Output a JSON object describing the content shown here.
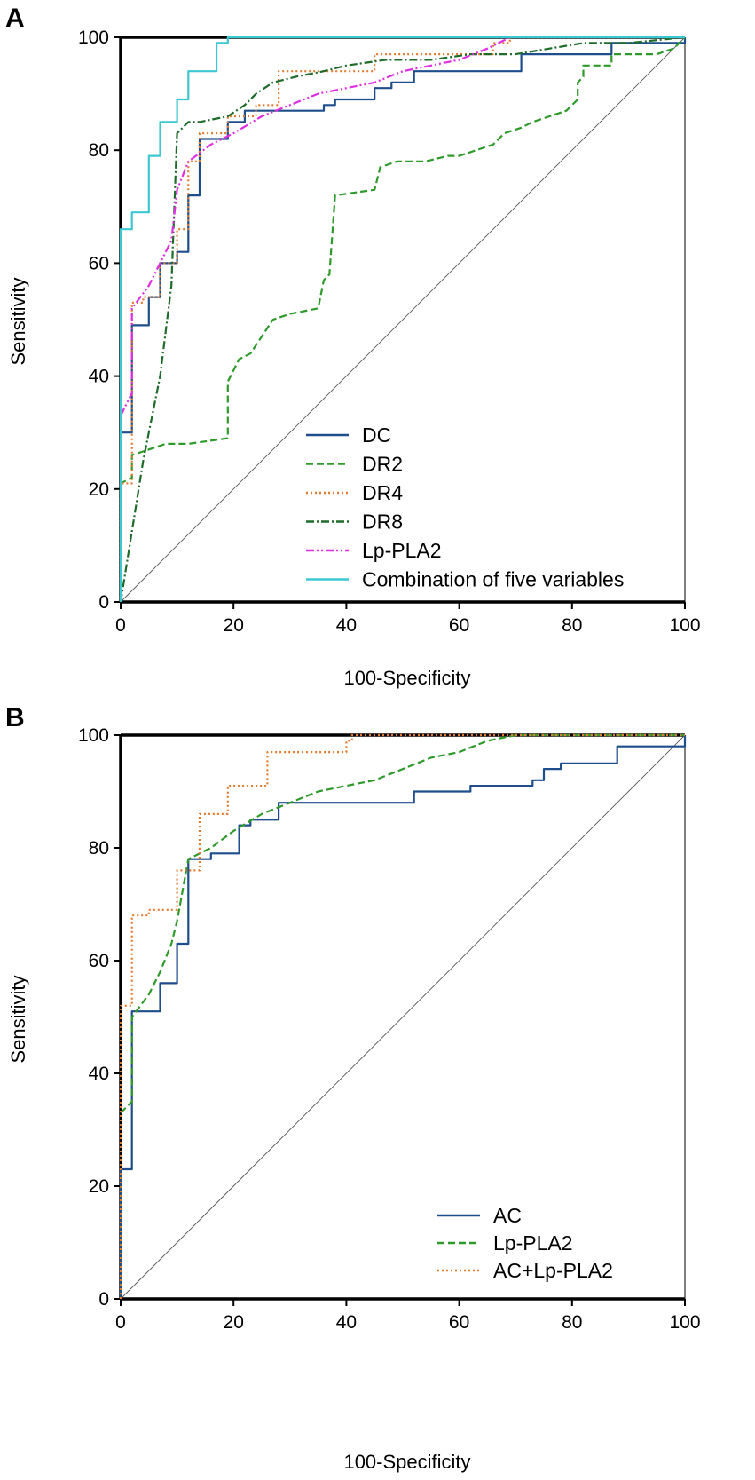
{
  "chart_data": [
    {
      "panel": "A",
      "type": "line",
      "title": "",
      "xlabel": "100-Specificity",
      "ylabel": "Sensitivity",
      "xlim": [
        0,
        100
      ],
      "ylim": [
        0,
        100
      ],
      "xticks": [
        "0",
        "20",
        "40",
        "60",
        "80",
        "100"
      ],
      "yticks": [
        "0",
        "20",
        "40",
        "60",
        "80",
        "100"
      ],
      "legend_position": "bottom-right",
      "reference_line": true,
      "series": [
        {
          "name": "DC",
          "color": "#1f4e8c",
          "dash": "solid",
          "step": true,
          "points": [
            [
              0,
              0
            ],
            [
              0,
              30
            ],
            [
              2,
              30
            ],
            [
              2,
              49
            ],
            [
              5,
              49
            ],
            [
              5,
              54
            ],
            [
              7,
              54
            ],
            [
              7,
              60
            ],
            [
              10,
              60
            ],
            [
              10,
              62
            ],
            [
              12,
              62
            ],
            [
              12,
              72
            ],
            [
              14,
              72
            ],
            [
              14,
              82
            ],
            [
              19,
              82
            ],
            [
              19,
              85
            ],
            [
              22,
              85
            ],
            [
              22,
              87
            ],
            [
              36,
              87
            ],
            [
              36,
              88
            ],
            [
              38,
              88
            ],
            [
              38,
              89
            ],
            [
              45,
              89
            ],
            [
              45,
              91
            ],
            [
              48,
              91
            ],
            [
              48,
              92
            ],
            [
              52,
              92
            ],
            [
              52,
              94
            ],
            [
              71,
              94
            ],
            [
              71,
              97
            ],
            [
              87,
              97
            ],
            [
              87,
              99
            ],
            [
              100,
              99
            ],
            [
              100,
              100
            ]
          ]
        },
        {
          "name": "DR2",
          "color": "#2e9a2a",
          "dash": "dashed",
          "step": false,
          "points": [
            [
              0,
              0
            ],
            [
              0,
              21
            ],
            [
              2,
              22
            ],
            [
              2,
              26
            ],
            [
              5,
              27
            ],
            [
              8,
              28
            ],
            [
              12,
              28
            ],
            [
              19,
              29
            ],
            [
              19,
              39
            ],
            [
              21,
              43
            ],
            [
              23,
              44
            ],
            [
              25,
              47
            ],
            [
              27,
              50
            ],
            [
              30,
              51
            ],
            [
              35,
              52
            ],
            [
              36,
              57
            ],
            [
              37,
              58
            ],
            [
              38,
              72
            ],
            [
              45,
              73
            ],
            [
              46,
              77
            ],
            [
              49,
              78
            ],
            [
              54,
              78
            ],
            [
              58,
              79
            ],
            [
              60,
              79
            ],
            [
              63,
              80
            ],
            [
              66,
              81
            ],
            [
              68,
              83
            ],
            [
              71,
              84
            ],
            [
              73,
              85
            ],
            [
              76,
              86
            ],
            [
              79,
              87
            ],
            [
              81,
              89
            ],
            [
              81,
              92
            ],
            [
              82,
              93
            ],
            [
              82,
              95
            ],
            [
              87,
              95
            ],
            [
              87,
              97
            ],
            [
              95,
              97
            ],
            [
              98,
              98
            ],
            [
              100,
              100
            ]
          ]
        },
        {
          "name": "DR4",
          "color": "#e57a2e",
          "dash": "dotted",
          "step": true,
          "points": [
            [
              0,
              0
            ],
            [
              0,
              21
            ],
            [
              2,
              21
            ],
            [
              2,
              53
            ],
            [
              4,
              53
            ],
            [
              4,
              54
            ],
            [
              7,
              54
            ],
            [
              7,
              60
            ],
            [
              10,
              60
            ],
            [
              10,
              66
            ],
            [
              12,
              66
            ],
            [
              12,
              78
            ],
            [
              14,
              78
            ],
            [
              14,
              83
            ],
            [
              19,
              83
            ],
            [
              19,
              86
            ],
            [
              24,
              86
            ],
            [
              24,
              88
            ],
            [
              28,
              88
            ],
            [
              28,
              94
            ],
            [
              45,
              94
            ],
            [
              45,
              97
            ],
            [
              66,
              97
            ],
            [
              66,
              99
            ],
            [
              69,
              99
            ],
            [
              69,
              100
            ],
            [
              100,
              100
            ]
          ]
        },
        {
          "name": "DR8",
          "color": "#1e6b2a",
          "dash": "dashdot",
          "step": false,
          "points": [
            [
              0,
              0
            ],
            [
              4,
              25
            ],
            [
              7,
              40
            ],
            [
              9,
              56
            ],
            [
              10,
              83
            ],
            [
              12,
              85
            ],
            [
              14,
              85
            ],
            [
              19,
              86
            ],
            [
              22,
              88
            ],
            [
              24,
              90
            ],
            [
              27,
              92
            ],
            [
              31,
              93
            ],
            [
              36,
              94
            ],
            [
              40,
              95
            ],
            [
              47,
              96
            ],
            [
              55,
              96
            ],
            [
              62,
              97
            ],
            [
              70,
              97
            ],
            [
              76,
              98
            ],
            [
              82,
              99
            ],
            [
              90,
              99
            ],
            [
              100,
              100
            ]
          ]
        },
        {
          "name": "Lp-PLA2",
          "color": "#e02fe0",
          "dash": "dashdotdot",
          "step": false,
          "points": [
            [
              0,
              33
            ],
            [
              2,
              37
            ],
            [
              2,
              52
            ],
            [
              5,
              56
            ],
            [
              7,
              60
            ],
            [
              9,
              64
            ],
            [
              10,
              73
            ],
            [
              12,
              78
            ],
            [
              16,
              81
            ],
            [
              20,
              83
            ],
            [
              25,
              86
            ],
            [
              30,
              88
            ],
            [
              35,
              90
            ],
            [
              40,
              91
            ],
            [
              45,
              92
            ],
            [
              50,
              94
            ],
            [
              55,
              95
            ],
            [
              60,
              96
            ],
            [
              65,
              98
            ],
            [
              69,
              100
            ]
          ]
        },
        {
          "name": "Combination of five variables",
          "color": "#3cc8d2",
          "dash": "solid",
          "step": true,
          "points": [
            [
              0,
              0
            ],
            [
              0,
              66
            ],
            [
              2,
              66
            ],
            [
              2,
              69
            ],
            [
              5,
              69
            ],
            [
              5,
              79
            ],
            [
              7,
              79
            ],
            [
              7,
              85
            ],
            [
              10,
              85
            ],
            [
              10,
              89
            ],
            [
              12,
              89
            ],
            [
              12,
              94
            ],
            [
              17,
              94
            ],
            [
              17,
              99
            ],
            [
              19,
              99
            ],
            [
              19,
              100
            ],
            [
              100,
              100
            ]
          ]
        }
      ]
    },
    {
      "panel": "B",
      "type": "line",
      "title": "",
      "xlabel": "100-Specificity",
      "ylabel": "Sensitivity",
      "xlim": [
        0,
        100
      ],
      "ylim": [
        0,
        100
      ],
      "xticks": [
        "0",
        "20",
        "40",
        "60",
        "80",
        "100"
      ],
      "yticks": [
        "0",
        "20",
        "40",
        "60",
        "80",
        "100"
      ],
      "legend_position": "bottom-right",
      "reference_line": true,
      "series": [
        {
          "name": "AC",
          "color": "#1f4e8c",
          "dash": "solid",
          "step": true,
          "points": [
            [
              0,
              0
            ],
            [
              0,
              23
            ],
            [
              2,
              23
            ],
            [
              2,
              51
            ],
            [
              7,
              51
            ],
            [
              7,
              56
            ],
            [
              10,
              56
            ],
            [
              10,
              63
            ],
            [
              12,
              63
            ],
            [
              12,
              78
            ],
            [
              16,
              78
            ],
            [
              16,
              79
            ],
            [
              21,
              79
            ],
            [
              21,
              84
            ],
            [
              23,
              84
            ],
            [
              23,
              85
            ],
            [
              28,
              85
            ],
            [
              28,
              88
            ],
            [
              52,
              88
            ],
            [
              52,
              90
            ],
            [
              62,
              90
            ],
            [
              62,
              91
            ],
            [
              73,
              91
            ],
            [
              73,
              92
            ],
            [
              75,
              92
            ],
            [
              75,
              94
            ],
            [
              78,
              94
            ],
            [
              78,
              95
            ],
            [
              88,
              95
            ],
            [
              88,
              98
            ],
            [
              100,
              98
            ],
            [
              100,
              100
            ]
          ]
        },
        {
          "name": "Lp-PLA2",
          "color": "#2e9a2a",
          "dash": "dashed",
          "step": false,
          "points": [
            [
              0,
              33
            ],
            [
              2,
              35
            ],
            [
              2,
              50
            ],
            [
              5,
              54
            ],
            [
              7,
              58
            ],
            [
              9,
              63
            ],
            [
              10,
              67
            ],
            [
              12,
              78
            ],
            [
              16,
              80
            ],
            [
              20,
              83
            ],
            [
              25,
              86
            ],
            [
              30,
              88
            ],
            [
              35,
              90
            ],
            [
              40,
              91
            ],
            [
              45,
              92
            ],
            [
              50,
              94
            ],
            [
              55,
              96
            ],
            [
              60,
              97
            ],
            [
              65,
              99
            ],
            [
              70,
              100
            ],
            [
              100,
              100
            ]
          ]
        },
        {
          "name": "AC+Lp-PLA2",
          "color": "#e57a2e",
          "dash": "dotted",
          "step": true,
          "points": [
            [
              0,
              0
            ],
            [
              0,
              52
            ],
            [
              2,
              52
            ],
            [
              2,
              68
            ],
            [
              5,
              68
            ],
            [
              5,
              69
            ],
            [
              10,
              69
            ],
            [
              10,
              76
            ],
            [
              14,
              76
            ],
            [
              14,
              86
            ],
            [
              19,
              86
            ],
            [
              19,
              91
            ],
            [
              26,
              91
            ],
            [
              26,
              97
            ],
            [
              40,
              97
            ],
            [
              40,
              99
            ],
            [
              41,
              99
            ],
            [
              41,
              100
            ],
            [
              100,
              100
            ]
          ]
        }
      ]
    }
  ]
}
